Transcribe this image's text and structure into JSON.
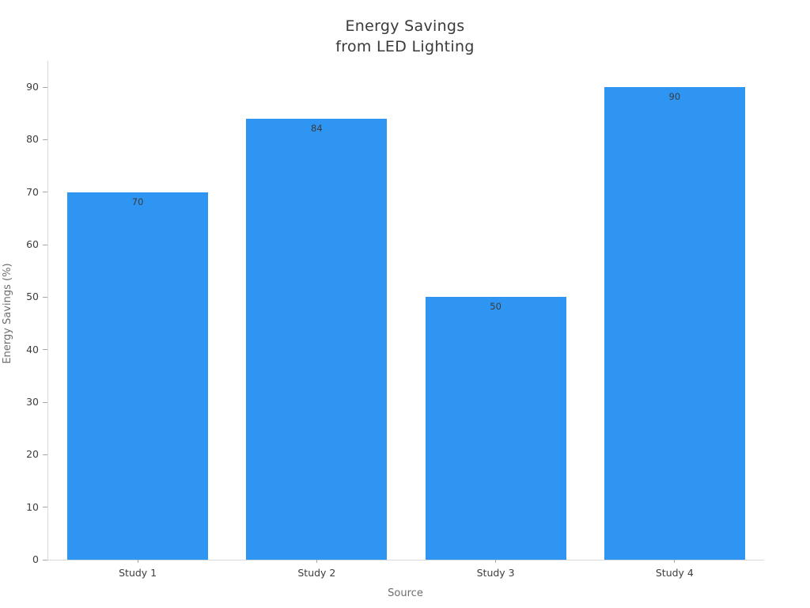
{
  "chart_data": {
    "type": "bar",
    "title_lines": [
      "Energy Savings",
      "from LED Lighting"
    ],
    "categories": [
      "Study 1",
      "Study 2",
      "Study 3",
      "Study 4"
    ],
    "values": [
      70,
      84,
      50,
      90
    ],
    "bar_value_labels": [
      "70",
      "84",
      "50",
      "90"
    ],
    "xlabel": "Source",
    "ylabel": "Energy Savings (%)",
    "ylim": [
      0,
      95
    ],
    "yticks": [
      0,
      10,
      20,
      30,
      40,
      50,
      60,
      70,
      80,
      90
    ],
    "grid": false,
    "legend": "none",
    "bar_color": "#2e95f3",
    "bar_width_fraction": 0.787
  }
}
